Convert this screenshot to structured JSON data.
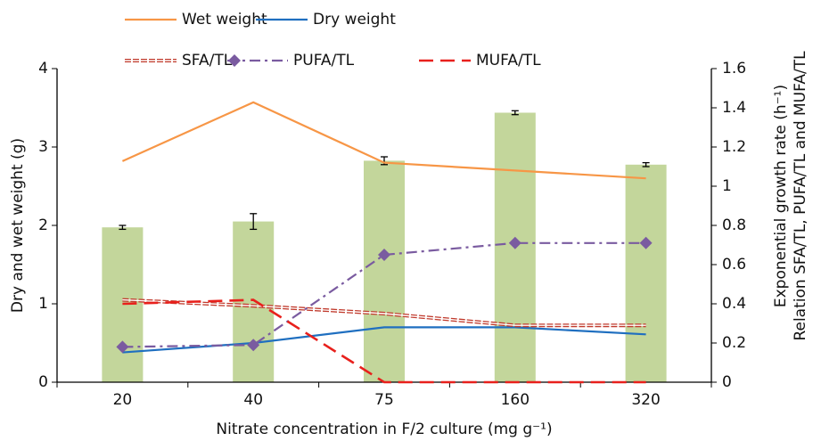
{
  "chart_data": {
    "type": "bar-line",
    "x_label": "Nitrate concentration in F/2 culture  (mg g⁻¹)",
    "y_label": "Dry and wet weight  (g)",
    "y2_label": [
      "Exponential growth rate (h⁻¹)",
      "Relation SFA/TL, PUFA/TL and MUFA/TL"
    ],
    "categories": [
      "20",
      "40",
      "75",
      "160",
      "320"
    ],
    "ylim": [
      0,
      4
    ],
    "yticks": [
      0,
      1,
      2,
      3,
      4
    ],
    "y2lim": [
      0,
      1.6
    ],
    "y2ticks": [
      0,
      0.2,
      0.4,
      0.6,
      0.8,
      1,
      1.2,
      1.4,
      1.6
    ],
    "bars": {
      "axis": "y2",
      "color": "#c3d69b",
      "values": [
        0.79,
        0.82,
        1.13,
        1.375,
        1.11
      ],
      "errors": [
        0.01,
        0.04,
        0.02,
        0.01,
        0.01
      ]
    },
    "series": [
      {
        "name": "Wet weight",
        "color": "#f79646",
        "style": "solid",
        "values": [
          2.82,
          3.57,
          2.8,
          2.7,
          2.6
        ]
      },
      {
        "name": "Dry weight",
        "color": "#1f6fc0",
        "style": "solid",
        "values": [
          0.38,
          0.5,
          0.7,
          0.7,
          0.61
        ]
      },
      {
        "name": "SFA/TL",
        "color": "#c0392b",
        "style": "double-dash",
        "axis": "y2",
        "values": [
          0.42,
          0.39,
          0.35,
          0.29,
          0.29
        ]
      },
      {
        "name": "PUFA/TL",
        "color": "#7a5ba0",
        "style": "dash-dot-diamond",
        "axis": "y2",
        "values": [
          0.18,
          0.19,
          0.65,
          0.71,
          0.71
        ]
      },
      {
        "name": "MUFA/TL",
        "color": "#e8201c",
        "style": "dash",
        "axis": "y2",
        "values": [
          0.4,
          0.42,
          0,
          0,
          0
        ]
      }
    ]
  }
}
